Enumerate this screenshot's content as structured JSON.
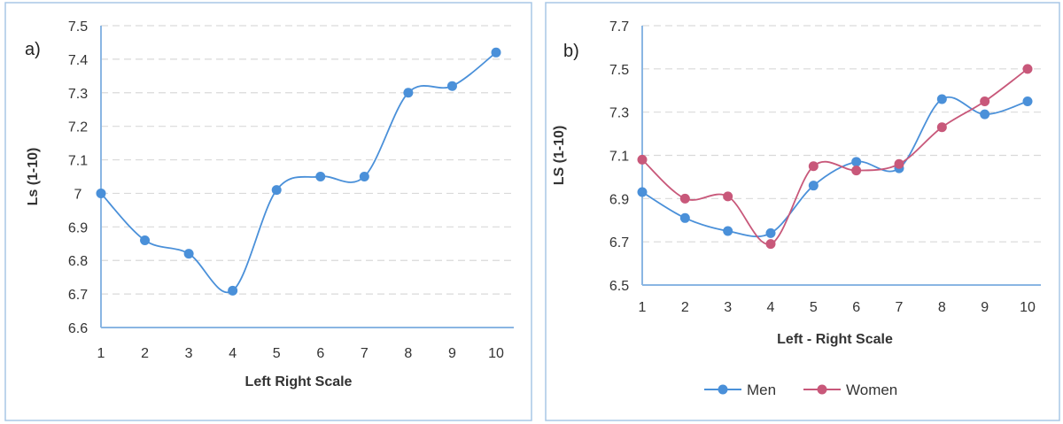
{
  "chart_data": [
    {
      "type": "line",
      "panel_label": "a)",
      "title": "",
      "xlabel": "Left Right Scale",
      "ylabel": "Ls (1-10)",
      "x": [
        1,
        2,
        3,
        4,
        5,
        6,
        7,
        8,
        9,
        10
      ],
      "ylim": [
        6.6,
        7.5
      ],
      "yticks": [
        "6.6",
        "6.7",
        "6.8",
        "6.9",
        "7",
        "7.1",
        "7.2",
        "7.3",
        "7.4",
        "7.5"
      ],
      "grid": true,
      "series": [
        {
          "name": "",
          "color": "#4a90d9",
          "values": [
            7.0,
            6.86,
            6.82,
            6.71,
            7.01,
            7.05,
            7.05,
            7.3,
            7.32,
            7.42
          ]
        }
      ]
    },
    {
      "type": "line",
      "panel_label": "b)",
      "title": "",
      "xlabel": "Left - Right Scale",
      "ylabel": "LS (1-10)",
      "x": [
        1,
        2,
        3,
        4,
        5,
        6,
        7,
        8,
        9,
        10
      ],
      "ylim": [
        6.5,
        7.7
      ],
      "yticks": [
        "6.5",
        "6.7",
        "6.9",
        "7.1",
        "7.3",
        "7.5",
        "7.7"
      ],
      "grid": true,
      "legend": "bottom",
      "series": [
        {
          "name": "Men",
          "color": "#4a90d9",
          "values": [
            6.93,
            6.81,
            6.75,
            6.74,
            6.96,
            7.07,
            7.04,
            7.36,
            7.29,
            7.35
          ]
        },
        {
          "name": "Women",
          "color": "#c8587a",
          "values": [
            7.08,
            6.9,
            6.91,
            6.69,
            7.05,
            7.03,
            7.06,
            7.23,
            7.35,
            7.5
          ]
        }
      ]
    }
  ]
}
